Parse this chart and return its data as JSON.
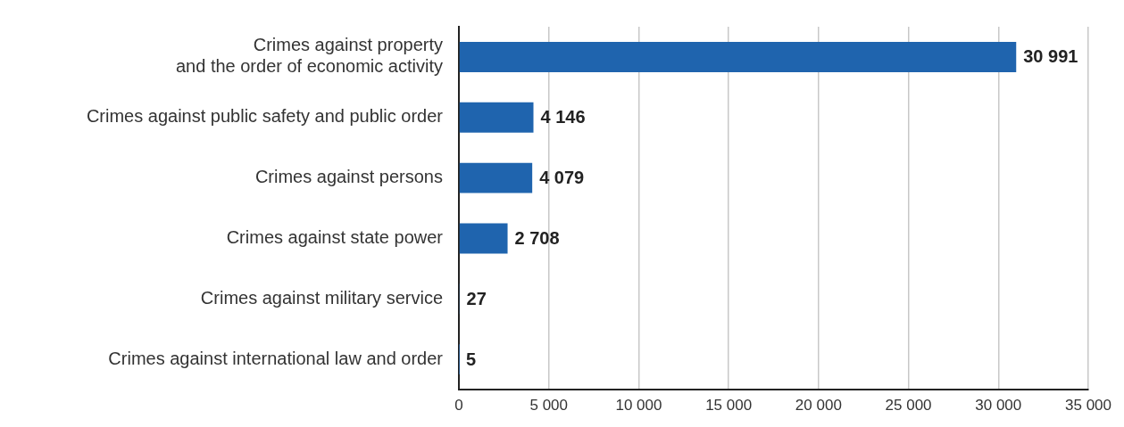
{
  "chart_data": {
    "type": "bar",
    "orientation": "horizontal",
    "categories": [
      "Crimes against property\nand the order of economic activity",
      "Crimes against public safety and public order",
      "Crimes against persons",
      "Crimes against state power",
      "Crimes against military service",
      "Crimes against international law and order"
    ],
    "values": [
      30991,
      4146,
      4079,
      2708,
      27,
      5
    ],
    "value_labels": [
      "30 991",
      "4 146",
      "4 079",
      "2 708",
      "27",
      "5"
    ],
    "color": "#1f64ae",
    "xlim": [
      0,
      35000
    ],
    "xticks": [
      0,
      {
        "value": 5000,
        "label": "5 000"
      },
      {
        "value": 10000,
        "label": "10 000"
      },
      {
        "value": 15000,
        "label": "15 000"
      },
      {
        "value": 20000,
        "label": "20 000"
      },
      {
        "value": 25000,
        "label": "25 000"
      },
      {
        "value": 30000,
        "label": "30 000"
      },
      {
        "value": 35000,
        "label": "35 000"
      }
    ],
    "grid": "x",
    "legend": false
  }
}
